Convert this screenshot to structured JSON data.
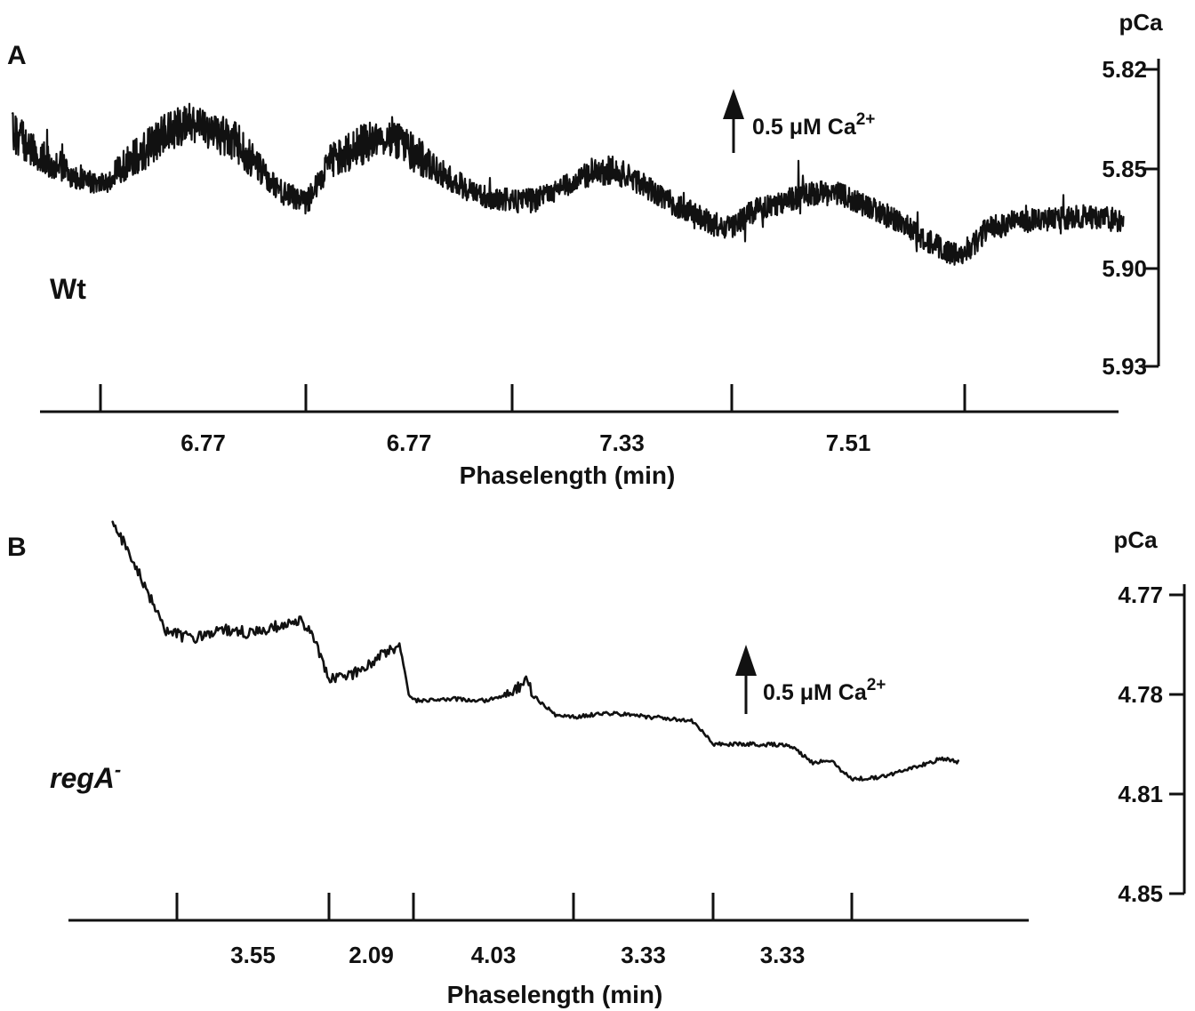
{
  "chart_data": [
    {
      "type": "line",
      "panel_label": "A",
      "strain_label": "Wt",
      "strain_italic": false,
      "ylabel": "pCa",
      "yticks": [
        5.82,
        5.85,
        5.9,
        5.93
      ],
      "ylim_top": 5.82,
      "ylim_bottom": 5.93,
      "y_inverted": true,
      "xlabel": "Phaselength (min)",
      "phase_lengths": [
        "6.77",
        "6.77",
        "7.33",
        "7.51"
      ],
      "period_boundaries_min": [
        0,
        6.77,
        13.54,
        20.87,
        28.38
      ],
      "x_range_min": [
        -2.9,
        33.5
      ],
      "annotation": {
        "text": "0.5 μM Ca",
        "superscript": "2+"
      },
      "noise": 0.006,
      "series": [
        {
          "x": [
            -2.9,
            -2.0,
            -1.0,
            0.0,
            1.0,
            2.0,
            2.9,
            3.6,
            4.5,
            5.3,
            6.0,
            6.77,
            7.5,
            8.5,
            9.6,
            10.5,
            11.5,
            12.3,
            13.0,
            13.54,
            14.3,
            15.3,
            16.3,
            17.0,
            17.8,
            18.6,
            19.5,
            20.3,
            20.87,
            21.6,
            22.6,
            23.6,
            24.4,
            25.2,
            26.1,
            26.9,
            27.6,
            28.38,
            29.1,
            30.2,
            31.2,
            32.3,
            33.5
          ],
          "y": [
            5.839,
            5.846,
            5.853,
            5.858,
            5.848,
            5.84,
            5.836,
            5.838,
            5.842,
            5.852,
            5.862,
            5.867,
            5.849,
            5.843,
            5.84,
            5.847,
            5.855,
            5.862,
            5.865,
            5.866,
            5.866,
            5.858,
            5.852,
            5.852,
            5.857,
            5.865,
            5.872,
            5.878,
            5.879,
            5.871,
            5.866,
            5.862,
            5.863,
            5.869,
            5.875,
            5.883,
            5.89,
            5.894,
            5.88,
            5.876,
            5.875,
            5.874,
            5.876
          ]
        }
      ]
    },
    {
      "type": "line",
      "panel_label": "B",
      "strain_label": "regA",
      "strain_superscript": "-",
      "strain_italic": true,
      "ylabel": "pCa",
      "yticks": [
        4.77,
        4.78,
        4.81,
        4.85
      ],
      "ylim_top": 4.77,
      "ylim_bottom": 4.85,
      "y_inverted": true,
      "xlabel": "Phaselength (min)",
      "phase_lengths": [
        "3.55",
        "2.09",
        "4.03",
        "3.33",
        "3.33"
      ],
      "period_boundaries_min": [
        0,
        3.55,
        5.64,
        9.67,
        13.0,
        16.33
      ],
      "x_range_min": [
        -1.5,
        18.9
      ],
      "annotation": {
        "text": "0.5 μM Ca",
        "superscript": "2+"
      },
      "noise": 0.0006,
      "series": [
        {
          "x": [
            -1.5,
            -1.2,
            -0.6,
            -0.3,
            0.0,
            0.4,
            1.0,
            1.8,
            2.8,
            3.1,
            3.55,
            4.2,
            4.7,
            5.3,
            5.64,
            6.5,
            7.5,
            8.5,
            9.2,
            9.67,
            10.5,
            11.5,
            12.5,
            13.0,
            14.0,
            14.8,
            15.4,
            15.8,
            16.33,
            17.0,
            17.7,
            18.2,
            18.5,
            18.9
          ],
          "y": [
            4.7626,
            4.765,
            4.7705,
            4.7735,
            4.774,
            4.7745,
            4.7735,
            4.7738,
            4.7725,
            4.7732,
            4.7785,
            4.7778,
            4.7764,
            4.775,
            4.7818,
            4.7813,
            4.7818,
            4.7786,
            4.786,
            4.7868,
            4.7856,
            4.7868,
            4.7878,
            4.795,
            4.795,
            4.7952,
            4.8005,
            4.7997,
            4.8055,
            4.805,
            4.8027,
            4.8005,
            4.7992,
            4.8006
          ]
        }
      ]
    }
  ]
}
